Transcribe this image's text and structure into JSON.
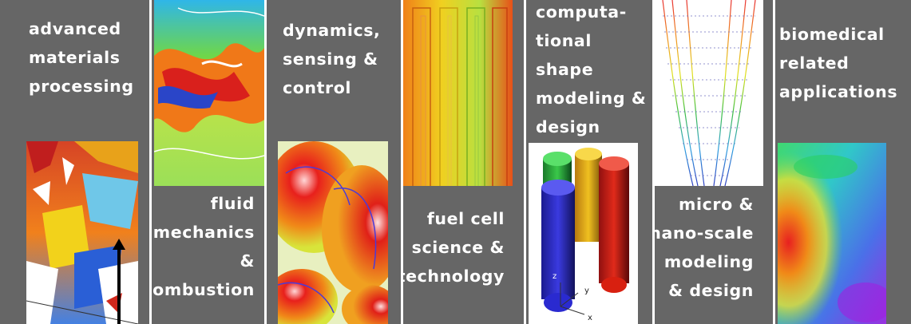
{
  "panels": [
    {
      "id": "materials",
      "lines": [
        "advanced",
        "materials",
        "processing"
      ]
    },
    {
      "id": "fluid",
      "lines": [
        "fluid",
        "mechanics",
        "&",
        "combustion"
      ]
    },
    {
      "id": "dynamics",
      "lines": [
        "dynamics,",
        "sensing &",
        "control"
      ]
    },
    {
      "id": "fuelcell",
      "lines": [
        "fuel cell",
        "science &",
        "technology"
      ]
    },
    {
      "id": "shape",
      "lines": [
        "computa-",
        "tional",
        "shape",
        "modeling &",
        "design"
      ]
    },
    {
      "id": "micro",
      "lines": [
        "micro &",
        "nano-scale",
        "modeling",
        "& design"
      ]
    },
    {
      "id": "biomedical",
      "lines": [
        "biomedical",
        "related",
        "applications"
      ]
    }
  ],
  "axis_labels": {
    "z": "z",
    "y": "y",
    "x": "x"
  },
  "colors": {
    "panel_gray": "#666666",
    "text": "#ffffff",
    "gap": "#ffffff"
  }
}
